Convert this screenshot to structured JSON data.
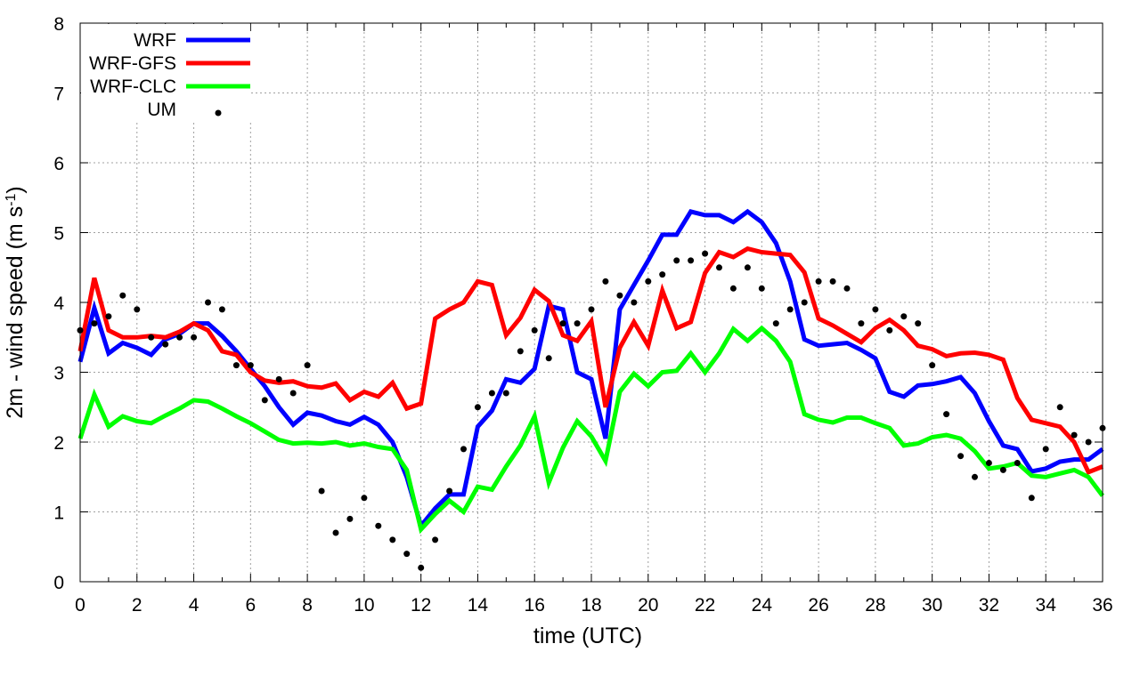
{
  "chart_data": {
    "type": "line",
    "xlabel": "time (UTC)",
    "ylabel": "2m - wind speed  (m s",
    "ylabel_sup": "-1",
    "ylabel_tail": ")",
    "xlim": [
      0,
      36
    ],
    "ylim": [
      0,
      8
    ],
    "xticks": [
      0,
      2,
      4,
      6,
      8,
      10,
      12,
      14,
      16,
      18,
      20,
      22,
      24,
      26,
      28,
      30,
      32,
      34,
      36
    ],
    "yticks": [
      0,
      1,
      2,
      3,
      4,
      5,
      6,
      7,
      8
    ],
    "grid": true,
    "legend_position": "top-left",
    "series": [
      {
        "name": "WRF",
        "style": "line",
        "color": "#0000ff",
        "x": [
          0,
          0.5,
          1,
          1.5,
          2,
          2.5,
          3,
          3.5,
          4,
          4.5,
          5,
          5.5,
          6,
          6.5,
          7,
          7.5,
          8,
          8.5,
          9,
          9.5,
          10,
          10.5,
          11,
          11.5,
          12,
          12.5,
          13,
          13.5,
          14,
          14.5,
          15,
          15.5,
          16,
          16.5,
          17,
          17.5,
          18,
          18.5,
          19,
          19.5,
          20,
          20.5,
          21,
          21.5,
          22,
          22.5,
          23,
          23.5,
          24,
          24.5,
          25,
          25.5,
          26,
          26.5,
          27,
          27.5,
          28,
          28.5,
          29,
          29.5,
          30,
          30.5,
          31,
          31.5,
          32,
          32.5,
          33,
          33.5,
          34,
          34.5,
          35,
          35.5,
          36
        ],
        "y": [
          3.15,
          3.92,
          3.27,
          3.42,
          3.35,
          3.25,
          3.47,
          3.55,
          3.7,
          3.7,
          3.52,
          3.3,
          3.05,
          2.8,
          2.5,
          2.25,
          2.42,
          2.38,
          2.3,
          2.25,
          2.36,
          2.25,
          2.0,
          1.5,
          0.8,
          1.05,
          1.25,
          1.25,
          2.22,
          2.45,
          2.9,
          2.85,
          3.05,
          3.95,
          3.9,
          3.0,
          2.9,
          2.05,
          3.9,
          4.25,
          4.6,
          4.97,
          4.97,
          5.3,
          5.25,
          5.25,
          5.15,
          5.3,
          5.15,
          4.85,
          4.3,
          3.47,
          3.38,
          3.4,
          3.42,
          3.32,
          3.2,
          2.72,
          2.65,
          2.81,
          2.83,
          2.87,
          2.93,
          2.7,
          2.3,
          1.95,
          1.9,
          1.58,
          1.62,
          1.72,
          1.75,
          1.75,
          1.9
        ]
      },
      {
        "name": "WRF-GFS",
        "style": "line",
        "color": "#ff0000",
        "x": [
          0,
          0.5,
          1,
          1.5,
          2,
          2.5,
          3,
          3.5,
          4,
          4.5,
          5,
          5.5,
          6,
          6.5,
          7,
          7.5,
          8,
          8.5,
          9,
          9.5,
          10,
          10.5,
          11,
          11.5,
          12,
          12.5,
          13,
          13.5,
          14,
          14.5,
          15,
          15.5,
          16,
          16.5,
          17,
          17.5,
          18,
          18.5,
          19,
          19.5,
          20,
          20.5,
          21,
          21.5,
          22,
          22.5,
          23,
          23.5,
          24,
          24.5,
          25,
          25.5,
          26,
          26.5,
          27,
          27.5,
          28,
          28.5,
          29,
          29.5,
          30,
          30.5,
          31,
          31.5,
          32,
          32.5,
          33,
          33.5,
          34,
          34.5,
          35,
          35.5,
          36
        ],
        "y": [
          3.3,
          4.35,
          3.6,
          3.5,
          3.5,
          3.52,
          3.5,
          3.58,
          3.7,
          3.6,
          3.3,
          3.25,
          3.0,
          2.88,
          2.85,
          2.87,
          2.8,
          2.78,
          2.84,
          2.6,
          2.72,
          2.65,
          2.85,
          2.48,
          2.55,
          3.77,
          3.9,
          4.0,
          4.3,
          4.25,
          3.53,
          3.78,
          4.18,
          4.02,
          3.53,
          3.45,
          3.73,
          2.5,
          3.35,
          3.72,
          3.38,
          4.17,
          3.63,
          3.72,
          4.42,
          4.72,
          4.65,
          4.77,
          4.72,
          4.7,
          4.68,
          4.43,
          3.77,
          3.67,
          3.55,
          3.43,
          3.63,
          3.75,
          3.6,
          3.38,
          3.33,
          3.23,
          3.27,
          3.28,
          3.25,
          3.18,
          2.63,
          2.32,
          2.27,
          2.22,
          2.0,
          1.57,
          1.65
        ]
      },
      {
        "name": "WRF-CLC",
        "style": "line",
        "color": "#00ff00",
        "x": [
          0,
          0.5,
          1,
          1.5,
          2,
          2.5,
          3,
          3.5,
          4,
          4.5,
          5,
          5.5,
          6,
          6.5,
          7,
          7.5,
          8,
          8.5,
          9,
          9.5,
          10,
          10.5,
          11,
          11.5,
          12,
          12.5,
          13,
          13.5,
          14,
          14.5,
          15,
          15.5,
          16,
          16.5,
          17,
          17.5,
          18,
          18.5,
          19,
          19.5,
          20,
          20.5,
          21,
          21.5,
          22,
          22.5,
          23,
          23.5,
          24,
          24.5,
          25,
          25.5,
          26,
          26.5,
          27,
          27.5,
          28,
          28.5,
          29,
          29.5,
          30,
          30.5,
          31,
          31.5,
          32,
          32.5,
          33,
          33.5,
          34,
          34.5,
          35,
          35.5,
          36
        ],
        "y": [
          2.05,
          2.68,
          2.22,
          2.37,
          2.3,
          2.27,
          2.38,
          2.48,
          2.6,
          2.58,
          2.48,
          2.37,
          2.27,
          2.15,
          2.03,
          1.98,
          1.99,
          1.98,
          2.0,
          1.95,
          1.98,
          1.93,
          1.9,
          1.6,
          0.75,
          0.97,
          1.16,
          1.0,
          1.36,
          1.32,
          1.65,
          1.95,
          2.37,
          1.42,
          1.92,
          2.3,
          2.08,
          1.73,
          2.72,
          2.98,
          2.8,
          3.0,
          3.02,
          3.27,
          3.0,
          3.27,
          3.62,
          3.45,
          3.63,
          3.45,
          3.15,
          2.4,
          2.32,
          2.28,
          2.35,
          2.35,
          2.27,
          2.2,
          1.95,
          1.98,
          2.07,
          2.1,
          2.05,
          1.87,
          1.62,
          1.65,
          1.7,
          1.52,
          1.5,
          1.55,
          1.6,
          1.5,
          1.23
        ]
      },
      {
        "name": "UM",
        "style": "points",
        "color": "#000000",
        "x": [
          0,
          0.5,
          1,
          1.5,
          2,
          2.5,
          3,
          3.5,
          4,
          4.5,
          5,
          5.5,
          6,
          6.5,
          7,
          7.5,
          8,
          8.5,
          9,
          9.5,
          10,
          10.5,
          11,
          11.5,
          12,
          12.5,
          13,
          13.5,
          14,
          14.5,
          15,
          15.5,
          16,
          16.5,
          17,
          17.5,
          18,
          18.5,
          19,
          19.5,
          20,
          20.5,
          21,
          21.5,
          22,
          22.5,
          23,
          23.5,
          24,
          24.5,
          25,
          25.5,
          26,
          26.5,
          27,
          27.5,
          28,
          28.5,
          29,
          29.5,
          30,
          30.5,
          31,
          31.5,
          32,
          32.5,
          33,
          33.5,
          34,
          34.5,
          35,
          35.5,
          36
        ],
        "y": [
          3.6,
          3.7,
          3.8,
          4.1,
          3.9,
          3.5,
          3.4,
          3.5,
          3.5,
          4.0,
          3.9,
          3.1,
          3.1,
          2.6,
          2.9,
          2.7,
          3.1,
          1.3,
          0.7,
          0.9,
          1.2,
          0.8,
          0.6,
          0.4,
          0.2,
          0.6,
          1.3,
          1.9,
          2.5,
          2.7,
          2.7,
          3.3,
          3.6,
          3.2,
          3.7,
          3.7,
          3.9,
          4.3,
          4.1,
          4.0,
          4.3,
          4.4,
          4.6,
          4.6,
          4.7,
          4.5,
          4.2,
          4.5,
          4.2,
          3.7,
          3.9,
          4.0,
          4.3,
          4.3,
          4.2,
          3.7,
          3.9,
          3.6,
          3.8,
          3.7,
          3.1,
          2.4,
          1.8,
          1.5,
          1.7,
          1.6,
          1.7,
          1.2,
          1.9,
          2.5,
          2.1,
          2.0,
          2.2
        ]
      }
    ]
  }
}
